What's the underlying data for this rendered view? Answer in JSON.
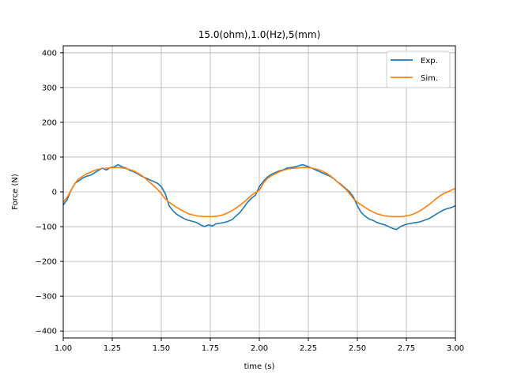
{
  "chart_data": {
    "type": "line",
    "title": "15.0(ohm),1.0(Hz),5(mm)",
    "xlabel": "time (s)",
    "ylabel": "Force (N)",
    "xlim": [
      1.0,
      3.0
    ],
    "ylim": [
      -420,
      420
    ],
    "xticks": [
      "1.00",
      "1.25",
      "1.50",
      "1.75",
      "2.00",
      "2.25",
      "2.50",
      "2.75",
      "3.00"
    ],
    "yticks": [
      "400",
      "300",
      "200",
      "100",
      "0",
      "−100",
      "−200",
      "−300",
      "−400"
    ],
    "grid": true,
    "legend_position": "top-right",
    "series": [
      {
        "name": "Exp.",
        "color": "#1f77b4",
        "x": [
          1.0,
          1.02,
          1.04,
          1.06,
          1.08,
          1.1,
          1.12,
          1.14,
          1.16,
          1.18,
          1.2,
          1.22,
          1.24,
          1.26,
          1.28,
          1.3,
          1.32,
          1.34,
          1.36,
          1.38,
          1.4,
          1.42,
          1.44,
          1.46,
          1.48,
          1.5,
          1.52,
          1.54,
          1.56,
          1.58,
          1.6,
          1.62,
          1.64,
          1.66,
          1.68,
          1.7,
          1.72,
          1.74,
          1.76,
          1.78,
          1.8,
          1.82,
          1.84,
          1.86,
          1.88,
          1.9,
          1.92,
          1.94,
          1.96,
          1.98,
          2.0,
          2.02,
          2.04,
          2.06,
          2.08,
          2.1,
          2.12,
          2.14,
          2.16,
          2.18,
          2.2,
          2.22,
          2.24,
          2.26,
          2.28,
          2.3,
          2.32,
          2.34,
          2.36,
          2.38,
          2.4,
          2.42,
          2.44,
          2.46,
          2.48,
          2.5,
          2.52,
          2.54,
          2.56,
          2.58,
          2.6,
          2.62,
          2.64,
          2.66,
          2.68,
          2.7,
          2.72,
          2.74,
          2.76,
          2.78,
          2.8,
          2.82,
          2.84,
          2.86,
          2.88,
          2.9,
          2.92,
          2.94,
          2.96,
          2.98,
          3.0
        ],
        "y": [
          -38,
          -22,
          5,
          25,
          32,
          40,
          45,
          48,
          55,
          62,
          68,
          63,
          70,
          72,
          78,
          72,
          68,
          62,
          58,
          52,
          45,
          40,
          35,
          30,
          25,
          15,
          -5,
          -40,
          -55,
          -65,
          -72,
          -78,
          -82,
          -85,
          -88,
          -95,
          -100,
          -95,
          -98,
          -92,
          -90,
          -88,
          -85,
          -80,
          -70,
          -60,
          -45,
          -30,
          -18,
          -10,
          15,
          30,
          42,
          50,
          55,
          60,
          63,
          68,
          70,
          72,
          75,
          78,
          75,
          70,
          65,
          60,
          55,
          50,
          45,
          38,
          28,
          20,
          10,
          0,
          -15,
          -40,
          -60,
          -70,
          -78,
          -82,
          -88,
          -92,
          -95,
          -100,
          -105,
          -108,
          -100,
          -95,
          -92,
          -90,
          -88,
          -86,
          -82,
          -78,
          -72,
          -65,
          -58,
          -52,
          -48,
          -45,
          -40
        ]
      },
      {
        "name": "Sim.",
        "color": "#ff7f0e",
        "x": [
          1.0,
          1.02,
          1.04,
          1.06,
          1.08,
          1.1,
          1.12,
          1.14,
          1.16,
          1.18,
          1.2,
          1.22,
          1.24,
          1.26,
          1.28,
          1.3,
          1.32,
          1.34,
          1.36,
          1.38,
          1.4,
          1.42,
          1.44,
          1.46,
          1.48,
          1.5,
          1.52,
          1.54,
          1.56,
          1.58,
          1.6,
          1.62,
          1.64,
          1.66,
          1.68,
          1.7,
          1.72,
          1.74,
          1.76,
          1.78,
          1.8,
          1.82,
          1.84,
          1.86,
          1.88,
          1.9,
          1.92,
          1.94,
          1.96,
          1.98,
          2.0,
          2.02,
          2.04,
          2.06,
          2.08,
          2.1,
          2.12,
          2.14,
          2.16,
          2.18,
          2.2,
          2.22,
          2.24,
          2.26,
          2.28,
          2.3,
          2.32,
          2.34,
          2.36,
          2.38,
          2.4,
          2.42,
          2.44,
          2.46,
          2.48,
          2.5,
          2.52,
          2.54,
          2.56,
          2.58,
          2.6,
          2.62,
          2.64,
          2.66,
          2.68,
          2.7,
          2.72,
          2.74,
          2.76,
          2.78,
          2.8,
          2.82,
          2.84,
          2.86,
          2.88,
          2.9,
          2.92,
          2.94,
          2.96,
          2.98,
          3.0
        ],
        "y": [
          -30,
          -15,
          5,
          25,
          38,
          45,
          52,
          57,
          62,
          65,
          67,
          68,
          69,
          70,
          70,
          69,
          67,
          64,
          60,
          54,
          47,
          38,
          28,
          18,
          8,
          -5,
          -20,
          -30,
          -38,
          -45,
          -52,
          -58,
          -63,
          -66,
          -69,
          -70,
          -71,
          -71,
          -71,
          -70,
          -68,
          -65,
          -60,
          -54,
          -47,
          -39,
          -30,
          -20,
          -10,
          -2,
          5,
          25,
          38,
          46,
          52,
          57,
          62,
          65,
          67,
          68,
          69,
          70,
          70,
          69,
          67,
          64,
          60,
          54,
          47,
          38,
          28,
          18,
          8,
          -5,
          -20,
          -30,
          -38,
          -45,
          -52,
          -58,
          -63,
          -66,
          -69,
          -70,
          -71,
          -71,
          -71,
          -70,
          -68,
          -65,
          -60,
          -54,
          -47,
          -39,
          -30,
          -20,
          -12,
          -5,
          0,
          5,
          10
        ]
      }
    ]
  }
}
